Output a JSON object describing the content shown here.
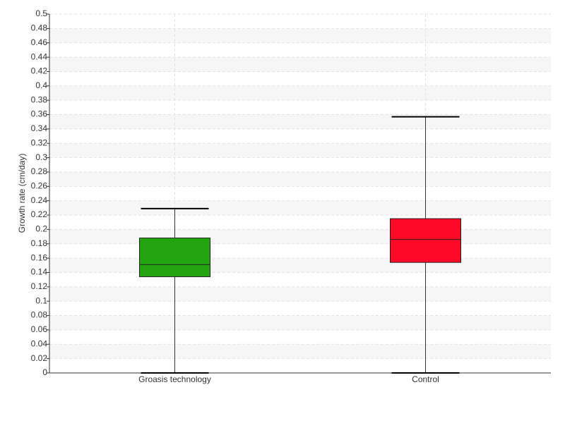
{
  "chart_data": {
    "type": "box",
    "ylabel": "Growth rate (cm/day)",
    "categories": [
      "Groasis technology",
      "Control"
    ],
    "min": [
      0,
      0
    ],
    "q1": [
      0.134,
      0.154
    ],
    "median": [
      0.151,
      0.186
    ],
    "q3": [
      0.188,
      0.215
    ],
    "max": [
      0.229,
      0.357
    ],
    "colors": [
      "#22a511",
      "#ff0a26"
    ],
    "ylim": [
      0,
      0.5
    ],
    "yticks": [
      0,
      0.02,
      0.04,
      0.06,
      0.08,
      0.1,
      0.12,
      0.14,
      0.16,
      0.18,
      0.2,
      0.22,
      0.24,
      0.26,
      0.28,
      0.3,
      0.32,
      0.34,
      0.36,
      0.38,
      0.4,
      0.42,
      0.44,
      0.46,
      0.48,
      0.5
    ],
    "grid": true
  }
}
